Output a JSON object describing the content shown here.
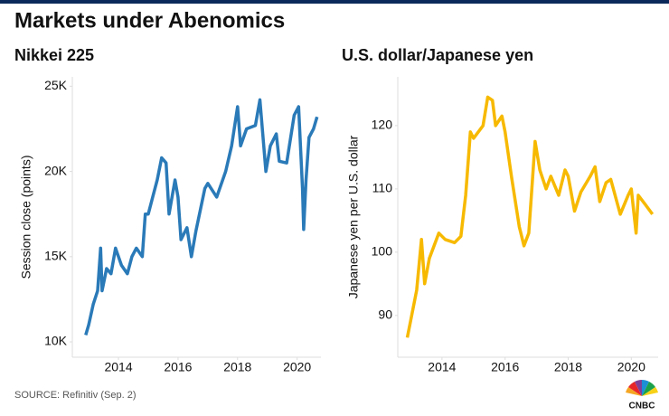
{
  "title": "Markets under Abenomics",
  "source": "SOURCE: Refinitiv (Sep. 2)",
  "logo": "CNBC",
  "chart_data": [
    {
      "type": "line",
      "title": "Nikkei 225",
      "y_label": "Session close (points)",
      "color": "#2a7ab8",
      "x": [
        2012.9,
        2013.0,
        2013.15,
        2013.3,
        2013.4,
        2013.45,
        2013.6,
        2013.75,
        2013.9,
        2014.1,
        2014.3,
        2014.45,
        2014.6,
        2014.8,
        2014.9,
        2015.0,
        2015.15,
        2015.3,
        2015.45,
        2015.6,
        2015.7,
        2015.9,
        2016.0,
        2016.1,
        2016.3,
        2016.45,
        2016.6,
        2016.9,
        2017.0,
        2017.3,
        2017.6,
        2017.8,
        2018.0,
        2018.1,
        2018.3,
        2018.6,
        2018.75,
        2018.95,
        2019.1,
        2019.3,
        2019.4,
        2019.65,
        2019.9,
        2020.05,
        2020.18,
        2020.22,
        2020.3,
        2020.4,
        2020.55,
        2020.67
      ],
      "values": [
        10400,
        11000,
        12200,
        13000,
        15500,
        13000,
        14300,
        14000,
        15500,
        14500,
        14000,
        15000,
        15500,
        15000,
        17500,
        17500,
        18500,
        19500,
        20800,
        20500,
        17500,
        19500,
        18500,
        16000,
        16700,
        15000,
        16500,
        19000,
        19300,
        18500,
        20000,
        21500,
        23800,
        21500,
        22500,
        22700,
        24200,
        20000,
        21500,
        22200,
        20600,
        20500,
        23300,
        23800,
        19000,
        16600,
        19500,
        22000,
        22500,
        23200
      ],
      "xlim": [
        2012.45,
        2020.8
      ],
      "ylim": [
        9100,
        25550
      ],
      "xticks": [
        2014,
        2016,
        2018,
        2020
      ],
      "yticks": [
        {
          "value": 10000,
          "label": "10K"
        },
        {
          "value": 15000,
          "label": "15K"
        },
        {
          "value": 20000,
          "label": "20K"
        },
        {
          "value": 25000,
          "label": "25K"
        }
      ],
      "grid": false
    },
    {
      "type": "line",
      "title": "U.S. dollar/Japanese yen",
      "y_label": "Japanese yen per U.S. dollar",
      "color": "#f7b900",
      "x": [
        2012.9,
        2013.0,
        2013.2,
        2013.35,
        2013.45,
        2013.6,
        2013.9,
        2014.1,
        2014.4,
        2014.6,
        2014.75,
        2014.9,
        2015.0,
        2015.3,
        2015.45,
        2015.6,
        2015.7,
        2015.9,
        2016.0,
        2016.2,
        2016.45,
        2016.6,
        2016.75,
        2016.95,
        2017.1,
        2017.3,
        2017.45,
        2017.7,
        2017.9,
        2018.0,
        2018.2,
        2018.4,
        2018.7,
        2018.85,
        2019.0,
        2019.2,
        2019.35,
        2019.65,
        2019.9,
        2020.0,
        2020.15,
        2020.22,
        2020.45,
        2020.67
      ],
      "values": [
        86.5,
        89,
        94,
        102,
        95,
        99,
        103,
        102,
        101.5,
        102.5,
        109,
        119,
        118,
        120,
        124.5,
        124,
        120,
        121.5,
        119,
        112,
        104,
        101,
        103,
        117.5,
        113,
        110,
        112,
        109,
        113,
        112,
        106.5,
        109.5,
        112,
        113.5,
        108,
        111,
        111.5,
        106,
        109,
        110,
        103,
        109,
        107.5,
        106
      ],
      "xlim": [
        2012.6,
        2020.85
      ],
      "ylim": [
        83.4,
        127.7
      ],
      "xticks": [
        2014,
        2016,
        2018,
        2020
      ],
      "yticks": [
        90,
        100,
        110,
        120
      ],
      "grid": false
    }
  ]
}
